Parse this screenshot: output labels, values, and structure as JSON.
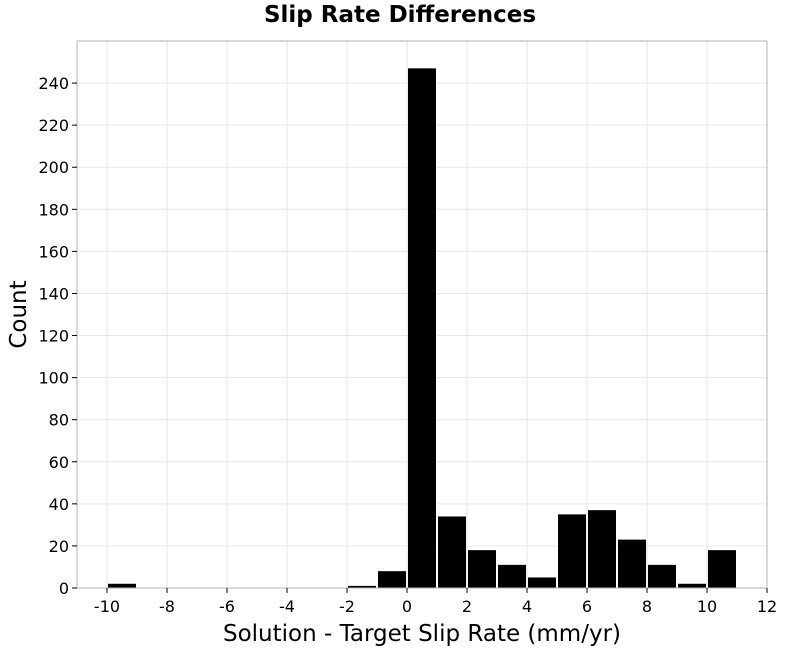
{
  "chart_data": {
    "type": "bar",
    "title": "Slip Rate Differences",
    "xlabel": "Solution - Target Slip Rate (mm/yr)",
    "ylabel": "Count",
    "xlim": [
      -11,
      12
    ],
    "ylim": [
      0,
      260
    ],
    "xticks": [
      -10,
      -8,
      -6,
      -4,
      -2,
      0,
      2,
      4,
      6,
      8,
      10,
      12
    ],
    "yticks": [
      0,
      20,
      40,
      60,
      80,
      100,
      120,
      140,
      160,
      180,
      200,
      220,
      240
    ],
    "bin_width": 1,
    "grid": true,
    "bars": [
      {
        "x": -9.5,
        "value": 2
      },
      {
        "x": -1.5,
        "value": 1
      },
      {
        "x": -0.5,
        "value": 8
      },
      {
        "x": 0.5,
        "value": 247
      },
      {
        "x": 1.5,
        "value": 34
      },
      {
        "x": 2.5,
        "value": 18
      },
      {
        "x": 3.5,
        "value": 11
      },
      {
        "x": 4.5,
        "value": 5
      },
      {
        "x": 5.5,
        "value": 35
      },
      {
        "x": 6.5,
        "value": 37
      },
      {
        "x": 7.5,
        "value": 23
      },
      {
        "x": 8.5,
        "value": 11
      },
      {
        "x": 9.5,
        "value": 2
      },
      {
        "x": 10.5,
        "value": 18
      }
    ],
    "colors": {
      "bar": "#000000",
      "grid": "#e6e6e6",
      "frame": "#b0b0b0"
    }
  }
}
